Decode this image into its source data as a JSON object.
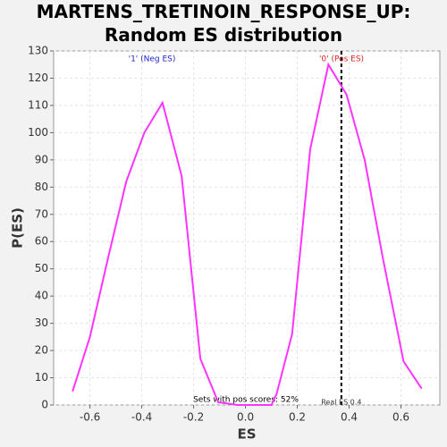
{
  "chart_data": {
    "type": "line",
    "title": "MARTENS_TRETINOIN_RESPONSE_UP: Random ES distribution",
    "x_label": "ES",
    "y_label": "P(ES)",
    "x": [
      -0.667,
      -0.6,
      -0.53,
      -0.46,
      -0.39,
      -0.32,
      -0.246,
      -0.174,
      -0.105,
      -0.03,
      0.03,
      0.1,
      0.12,
      0.18,
      0.25,
      0.32,
      0.39,
      0.46,
      0.53,
      0.61,
      0.68
    ],
    "series": [
      {
        "name": "P(ES)",
        "color": "#ff33ff",
        "values": [
          5,
          25,
          54,
          82,
          100,
          111,
          84,
          17,
          1,
          0,
          0,
          0,
          4,
          26,
          94,
          125,
          114,
          90,
          54,
          16,
          6
        ]
      }
    ],
    "xlim": [
      -0.74,
      0.75
    ],
    "xticks": [
      -0.6,
      -0.4,
      -0.2,
      {
        "value": 0,
        "label": "0.0"
      },
      0.2,
      0.4,
      0.6
    ],
    "ylim": [
      0,
      130
    ],
    "yticks": [
      0,
      10,
      20,
      30,
      40,
      50,
      60,
      70,
      80,
      90,
      100,
      110,
      120,
      130
    ],
    "grid": true,
    "neg_label": "'1' (Neg ES)",
    "pos_label": "'0' (Pos ES)",
    "pos_scores_label": "Sets with pos scores: 52%",
    "real_es": 0.37,
    "real_es_label": "Real ES 0.4"
  }
}
